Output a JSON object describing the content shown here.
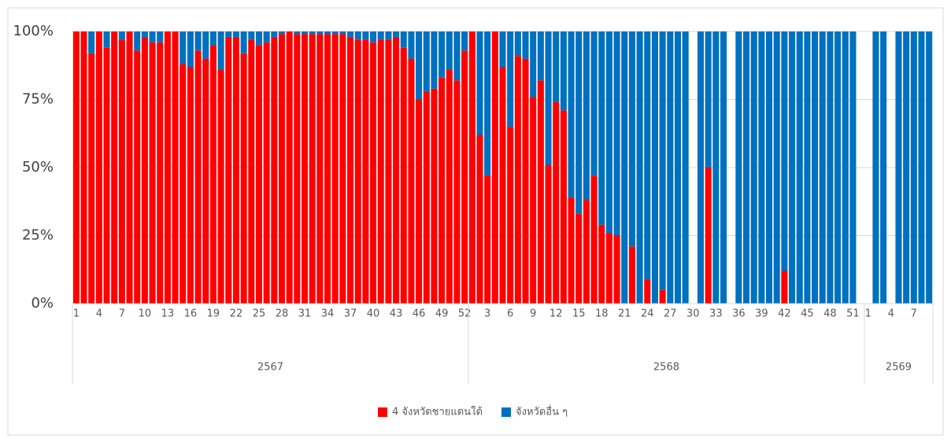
{
  "chart_data": {
    "type": "stacked-bar",
    "categories": [
      1,
      null,
      null,
      4,
      null,
      null,
      7,
      null,
      null,
      10,
      null,
      null,
      13,
      null,
      null,
      16,
      null,
      null,
      19,
      null,
      null,
      22,
      null,
      null,
      25,
      null,
      null,
      28,
      null,
      null,
      31,
      null,
      null,
      34,
      null,
      null,
      37,
      null,
      null,
      40,
      null,
      null,
      43,
      null,
      null,
      46,
      null,
      null,
      49,
      null,
      null,
      52,
      null,
      null,
      3,
      null,
      null,
      6,
      null,
      null,
      9,
      null,
      null,
      12,
      null,
      null,
      15,
      null,
      null,
      18,
      null,
      null,
      21,
      null,
      null,
      24,
      null,
      null,
      27,
      null,
      null,
      30,
      null,
      null,
      33,
      null,
      null,
      36,
      null,
      null,
      39,
      null,
      null,
      42,
      null,
      null,
      45,
      null,
      null,
      48,
      null,
      null,
      51,
      null,
      1,
      null,
      null,
      4,
      null,
      null,
      7,
      null,
      null
    ],
    "group_labels": [
      "2567",
      "2568",
      "2569"
    ],
    "group_sizes": [
      52,
      52,
      9
    ],
    "series": [
      {
        "name": "4 จังหวัดชายแดนใต้",
        "color": "#ff0000",
        "values": [
          100,
          100,
          92,
          100,
          94,
          100,
          97,
          100,
          93,
          98,
          96,
          96,
          100,
          100,
          88,
          87,
          93,
          90,
          95,
          86,
          98,
          98,
          92,
          97,
          95,
          96,
          98,
          99,
          100,
          99,
          99,
          99,
          99,
          99,
          99,
          99,
          98,
          97,
          97,
          96,
          97,
          97,
          98,
          94,
          90,
          75,
          78,
          79,
          83,
          86,
          82,
          93,
          100,
          62,
          47,
          100,
          87,
          65,
          91,
          90,
          76,
          82,
          51,
          74,
          71,
          39,
          33,
          38,
          47,
          29,
          26,
          25,
          0,
          21,
          0,
          9,
          0,
          5,
          0,
          0,
          0,
          null,
          0,
          50,
          0,
          0,
          null,
          0,
          0,
          0,
          0,
          0,
          0,
          12,
          0,
          0,
          0,
          0,
          0,
          0,
          0,
          0,
          0,
          null,
          null,
          0,
          0,
          null,
          0,
          0,
          0,
          0,
          0
        ]
      },
      {
        "name": "จังหวัดอื่น ๆ",
        "color": "#0070c0",
        "values": [
          0,
          0,
          8,
          0,
          6,
          0,
          3,
          0,
          7,
          2,
          4,
          4,
          0,
          0,
          12,
          13,
          7,
          10,
          5,
          14,
          2,
          2,
          8,
          3,
          5,
          4,
          2,
          1,
          0,
          1,
          1,
          1,
          1,
          1,
          1,
          1,
          2,
          3,
          3,
          4,
          3,
          3,
          2,
          6,
          10,
          25,
          22,
          21,
          17,
          14,
          18,
          7,
          0,
          38,
          53,
          0,
          13,
          35,
          9,
          10,
          24,
          18,
          49,
          26,
          29,
          61,
          67,
          62,
          53,
          71,
          74,
          75,
          100,
          79,
          100,
          91,
          100,
          95,
          100,
          100,
          100,
          null,
          100,
          50,
          100,
          100,
          null,
          100,
          100,
          100,
          100,
          100,
          100,
          88,
          100,
          100,
          100,
          100,
          100,
          100,
          100,
          100,
          100,
          null,
          null,
          100,
          100,
          null,
          100,
          100,
          100,
          100,
          100
        ]
      }
    ],
    "ylim": [
      0,
      100
    ],
    "yticks": [
      {
        "value": 0,
        "label": "0%"
      },
      {
        "value": 25,
        "label": "25%"
      },
      {
        "value": 50,
        "label": "50%"
      },
      {
        "value": 75,
        "label": "75%"
      },
      {
        "value": 100,
        "label": "100%"
      }
    ],
    "grid": true,
    "legend": "bottom"
  }
}
